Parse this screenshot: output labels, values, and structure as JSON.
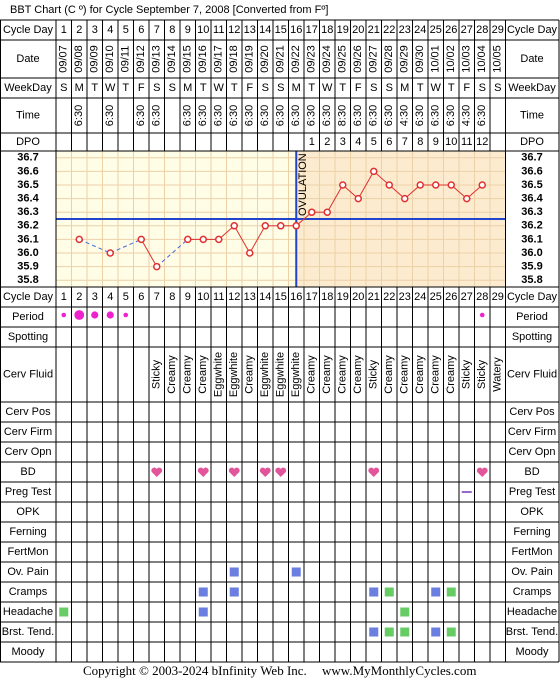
{
  "title": "BBT Chart (C º) for Cycle September 7, 2008  [Converted from Fº]",
  "rows": {
    "cycle_day": "Cycle Day",
    "date": "Date",
    "weekday": "WeekDay",
    "time": "Time",
    "dpo": "DPO",
    "period": "Period",
    "spotting": "Spotting",
    "cerv_fluid": "Cerv Fluid",
    "cerv_pos": "Cerv Pos",
    "cerv_firm": "Cerv Firm",
    "cerv_opn": "Cerv Opn",
    "bd": "BD",
    "preg_test": "Preg Test",
    "opk": "OPK",
    "ferning": "Ferning",
    "fertmon": "FertMon",
    "ov_pain": "Ov. Pain",
    "cramps": "Cramps",
    "headache": "Headache",
    "brst_tend": "Brst. Tend.",
    "moody": "Moody"
  },
  "cycle_days": [
    1,
    2,
    3,
    4,
    5,
    6,
    7,
    8,
    9,
    10,
    11,
    12,
    13,
    14,
    15,
    16,
    17,
    18,
    19,
    20,
    21,
    22,
    23,
    24,
    25,
    26,
    27,
    28,
    29
  ],
  "dates": [
    "09/07",
    "09/08",
    "09/09",
    "09/10",
    "09/11",
    "09/12",
    "09/13",
    "09/14",
    "09/15",
    "09/16",
    "09/17",
    "09/18",
    "09/19",
    "09/20",
    "09/21",
    "09/22",
    "09/23",
    "09/24",
    "09/25",
    "09/26",
    "09/27",
    "09/28",
    "09/29",
    "09/30",
    "10/01",
    "10/02",
    "10/03",
    "10/04",
    "10/05"
  ],
  "weekdays": [
    "S",
    "M",
    "T",
    "W",
    "T",
    "F",
    "S",
    "S",
    "M",
    "T",
    "W",
    "T",
    "F",
    "S",
    "S",
    "M",
    "T",
    "W",
    "T",
    "F",
    "S",
    "S",
    "M",
    "T",
    "W",
    "T",
    "F",
    "S",
    "S"
  ],
  "times": [
    null,
    "6:30",
    null,
    "6:30",
    null,
    "6:30",
    "6:30",
    null,
    "6:30",
    "6:30",
    "6:30",
    "6:30",
    "6:30",
    "6:30",
    "6:30",
    "6:30",
    "6:30",
    "6:30",
    "8:30",
    "6:30",
    "6:30",
    "6:30",
    "4:30",
    "6:30",
    "6:30",
    "6:30",
    "4:30",
    "6:30",
    null
  ],
  "dpo": [
    null,
    null,
    null,
    null,
    null,
    null,
    null,
    null,
    null,
    null,
    null,
    null,
    null,
    null,
    null,
    null,
    1,
    2,
    3,
    4,
    5,
    6,
    7,
    8,
    9,
    10,
    11,
    12,
    null
  ],
  "chart_data": {
    "type": "line",
    "values": [
      null,
      36.1,
      null,
      36.0,
      null,
      36.1,
      35.9,
      null,
      36.1,
      36.1,
      36.1,
      36.2,
      36.0,
      36.2,
      36.2,
      36.2,
      36.3,
      36.3,
      36.5,
      36.4,
      36.6,
      36.5,
      36.4,
      36.5,
      36.5,
      36.5,
      36.4,
      36.5,
      null
    ],
    "color": "#e03030",
    "gap_color": "#4466dd",
    "ylim": [
      35.75,
      36.75
    ],
    "yticks": [
      35.8,
      35.9,
      {
        "value": 36,
        "label": "36.0"
      },
      36.1,
      36.2,
      36.3,
      36.4,
      36.5,
      36.6,
      36.7
    ],
    "grid": true,
    "coverline": 36.25,
    "ovulation_day": 16,
    "annotation": "OVULATION"
  },
  "period": [
    1,
    3,
    2,
    2,
    1,
    null,
    null,
    null,
    null,
    null,
    null,
    null,
    null,
    null,
    null,
    null,
    null,
    null,
    null,
    null,
    null,
    null,
    null,
    null,
    null,
    null,
    null,
    1,
    null
  ],
  "cerv_fluid": [
    null,
    null,
    null,
    null,
    null,
    null,
    "Sticky",
    "Creamy",
    "Creamy",
    "Creamy",
    "Eggwhite",
    "Eggwhite",
    "Creamy",
    "Eggwhite",
    "Eggwhite",
    "Eggwhite",
    "Creamy",
    "Creamy",
    "Creamy",
    "Creamy",
    "Sticky",
    "Creamy",
    "Creamy",
    "Creamy",
    "Creamy",
    "Creamy",
    "Sticky",
    "Sticky",
    "Watery"
  ],
  "bd": [
    7,
    10,
    12,
    14,
    15,
    21,
    28
  ],
  "marks": {
    "preg_test": [
      {
        "day": 27,
        "color": "#9966cc"
      }
    ],
    "ov_pain": [
      {
        "day": 12,
        "color": "#6a7fe0"
      },
      {
        "day": 16,
        "color": "#6a7fe0"
      }
    ],
    "cramps": [
      {
        "day": 10,
        "color": "#6a7fe0"
      },
      {
        "day": 12,
        "color": "#6a7fe0"
      },
      {
        "day": 21,
        "color": "#6a7fe0"
      },
      {
        "day": 22,
        "color": "#66cc66"
      },
      {
        "day": 25,
        "color": "#6a7fe0"
      },
      {
        "day": 26,
        "color": "#66cc66"
      }
    ],
    "headache": [
      {
        "day": 1,
        "color": "#66cc66"
      },
      {
        "day": 10,
        "color": "#6a7fe0"
      },
      {
        "day": 23,
        "color": "#66cc66"
      }
    ],
    "brst_tend": [
      {
        "day": 21,
        "color": "#6a7fe0"
      },
      {
        "day": 22,
        "color": "#66cc66"
      },
      {
        "day": 23,
        "color": "#66cc66"
      },
      {
        "day": 25,
        "color": "#6a7fe0"
      },
      {
        "day": 26,
        "color": "#66cc66"
      }
    ]
  },
  "footer": {
    "copyright": "Copyright © 2003-2024 bInfinity Web Inc.",
    "site": "www.MyMonthlyCycles.com"
  }
}
